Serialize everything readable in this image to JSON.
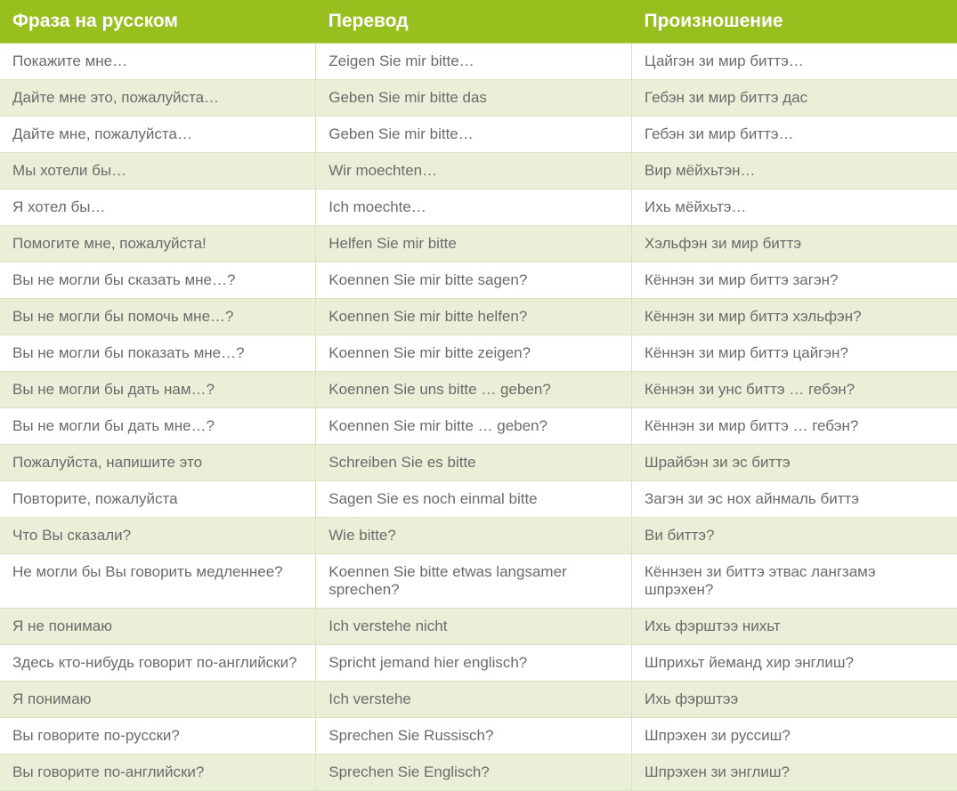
{
  "table": {
    "header_bg": "#97bf1e",
    "header_text_color": "#ffffff",
    "header_fontsize": 21,
    "body_text_color": "#6b6b6b",
    "body_fontsize": 17,
    "row_even_bg": "#ffffff",
    "row_odd_bg": "#eaf0d8",
    "col_widths": [
      "33%",
      "33%",
      "34%"
    ],
    "columns": [
      "Фраза на русском",
      "Перевод",
      "Произношение"
    ],
    "rows": [
      [
        "Покажите мне…",
        " Zeigen Sie mir bitte…",
        "Цайгэн зи мир биттэ…"
      ],
      [
        "Дайте мне это, пожалуйста…",
        "Geben Sie mir bitte das",
        "Гебэн зи мир биттэ дас"
      ],
      [
        "Дайте мне, пожалуйста…",
        "Geben Sie mir bitte…",
        "Гебэн зи мир биттэ…"
      ],
      [
        "Мы хотели бы…",
        "Wir moechten…",
        "Вир мёйхьтэн…"
      ],
      [
        "Я хотел бы…",
        "Ich moechte…",
        "Ихь мёйхьтэ…"
      ],
      [
        "Помогите мне, пожалуйста!",
        "Helfen Sie mir bitte",
        "Хэльфэн зи мир биттэ"
      ],
      [
        "Вы не могли бы сказать мне…?",
        "Koennen Sie mir bitte sagen?",
        "Кённэн зи мир биттэ загэн?"
      ],
      [
        "Вы не могли бы помочь мне…?",
        "Koennen Sie mir bitte helfen?",
        "Кённэн зи мир биттэ хэльфэн?"
      ],
      [
        "Вы не могли бы показать мне…?",
        "Koennen Sie mir bitte zeigen?",
        "Кённэн зи мир биттэ цайгэн?"
      ],
      [
        "Вы не могли бы дать нам…?",
        "Koennen Sie uns bitte … geben?",
        "Кённэн зи унс биттэ … гебэн?"
      ],
      [
        "Вы не могли бы дать мне…?",
        "Koennen Sie mir bitte … geben?",
        "Кённэн зи мир биттэ … гебэн?"
      ],
      [
        " Пожалуйста, напишите это",
        "Schreiben Sie es bitte",
        "Шрайбэн зи эс биттэ"
      ],
      [
        " Повторите, пожалуйста",
        "Sagen Sie es noch einmal bitte",
        "Загэн зи эс нох айнмаль биттэ"
      ],
      [
        " Что Вы сказали?",
        "Wie bitte?",
        "Ви биттэ?"
      ],
      [
        " Не могли бы Вы говорить медленнее?",
        "Koennen Sie bitte etwas langsamer sprechen?",
        "Кённзен зи биттэ этвас лангзамэ шпрэхен?"
      ],
      [
        " Я не понимаю",
        "Ich verstehe nicht",
        "Ихь фэрштээ нихьт"
      ],
      [
        " Здесь кто-нибудь говорит по-английски?",
        "Spricht jemand hier englisch?",
        "Шприхьт йеманд хир энглиш?"
      ],
      [
        " Я понимаю",
        "Ich verstehe",
        "Ихь фэрштээ"
      ],
      [
        "Вы говорите по-русски?",
        "Sprechen Sie Russisch?",
        "Шпрэхен зи руссиш?"
      ],
      [
        "Вы говорите по-английски?",
        "Sprechen Sie Englisch?",
        "Шпрэхен зи энглиш?"
      ]
    ]
  }
}
